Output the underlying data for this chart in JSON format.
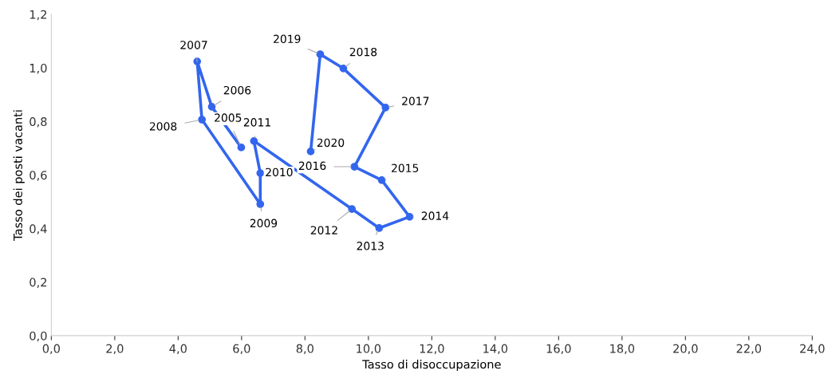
{
  "chart_data": {
    "type": "line",
    "xlabel": "Tasso di disoccupazione",
    "ylabel": "Tasso dei posti vacanti",
    "x": [
      5.99,
      5.06,
      4.6,
      4.75,
      6.59,
      6.59,
      6.39,
      9.48,
      10.34,
      11.3,
      10.42,
      9.56,
      10.54,
      9.21,
      8.48,
      8.18
    ],
    "series": [
      {
        "color": "#3366ee",
        "values": [
          0.703,
          0.855,
          1.024,
          0.807,
          0.491,
          0.607,
          0.727,
          0.473,
          0.402,
          0.444,
          0.581,
          0.631,
          0.852,
          0.998,
          1.051,
          0.688
        ]
      }
    ],
    "marker": "circle",
    "line_style": "solid",
    "grid": false,
    "xlim": [
      0,
      24
    ],
    "ylim": [
      0,
      1.2
    ],
    "xticks": [
      {
        "value": 0,
        "label": "0,0"
      },
      {
        "value": 2,
        "label": "2,0"
      },
      {
        "value": 4,
        "label": "4,0"
      },
      {
        "value": 6,
        "label": "6,0"
      },
      {
        "value": 8,
        "label": "8,0"
      },
      {
        "value": 10,
        "label": "10,0"
      },
      {
        "value": 12,
        "label": "12,0"
      },
      {
        "value": 14,
        "label": "14,0"
      },
      {
        "value": 16,
        "label": "16,0"
      },
      {
        "value": 18,
        "label": "18,0"
      },
      {
        "value": 20,
        "label": "20,0"
      },
      {
        "value": 22,
        "label": "22,0"
      },
      {
        "value": 24,
        "label": "24,0"
      }
    ],
    "yticks": [
      {
        "value": 0,
        "label": "0,0"
      },
      {
        "value": 0.2,
        "label": "0,2"
      },
      {
        "value": 0.4,
        "label": "0,4"
      },
      {
        "value": 0.6,
        "label": "0,6"
      },
      {
        "value": 0.8,
        "label": "0,8"
      },
      {
        "value": 1.0,
        "label": "1,0"
      },
      {
        "value": 1.2,
        "label": "1,2"
      }
    ],
    "annotations": [
      {
        "text": "2005",
        "x": 5.99,
        "y": 0.703
      },
      {
        "text": "2006",
        "x": 5.06,
        "y": 0.855
      },
      {
        "text": "2007",
        "x": 4.6,
        "y": 1.024
      },
      {
        "text": "2008",
        "x": 4.75,
        "y": 0.807
      },
      {
        "text": "2009",
        "x": 6.59,
        "y": 0.491
      },
      {
        "text": "2010",
        "x": 6.59,
        "y": 0.607
      },
      {
        "text": "2011",
        "x": 6.39,
        "y": 0.727
      },
      {
        "text": "2012",
        "x": 9.48,
        "y": 0.473
      },
      {
        "text": "2013",
        "x": 10.34,
        "y": 0.402
      },
      {
        "text": "2014",
        "x": 11.3,
        "y": 0.444
      },
      {
        "text": "2015",
        "x": 10.42,
        "y": 0.581
      },
      {
        "text": "2016",
        "x": 9.56,
        "y": 0.631
      },
      {
        "text": "2017",
        "x": 10.54,
        "y": 0.852
      },
      {
        "text": "2018",
        "x": 9.21,
        "y": 0.998
      },
      {
        "text": "2019",
        "x": 8.48,
        "y": 1.051
      },
      {
        "text": "2020",
        "x": 8.18,
        "y": 0.688
      }
    ]
  }
}
